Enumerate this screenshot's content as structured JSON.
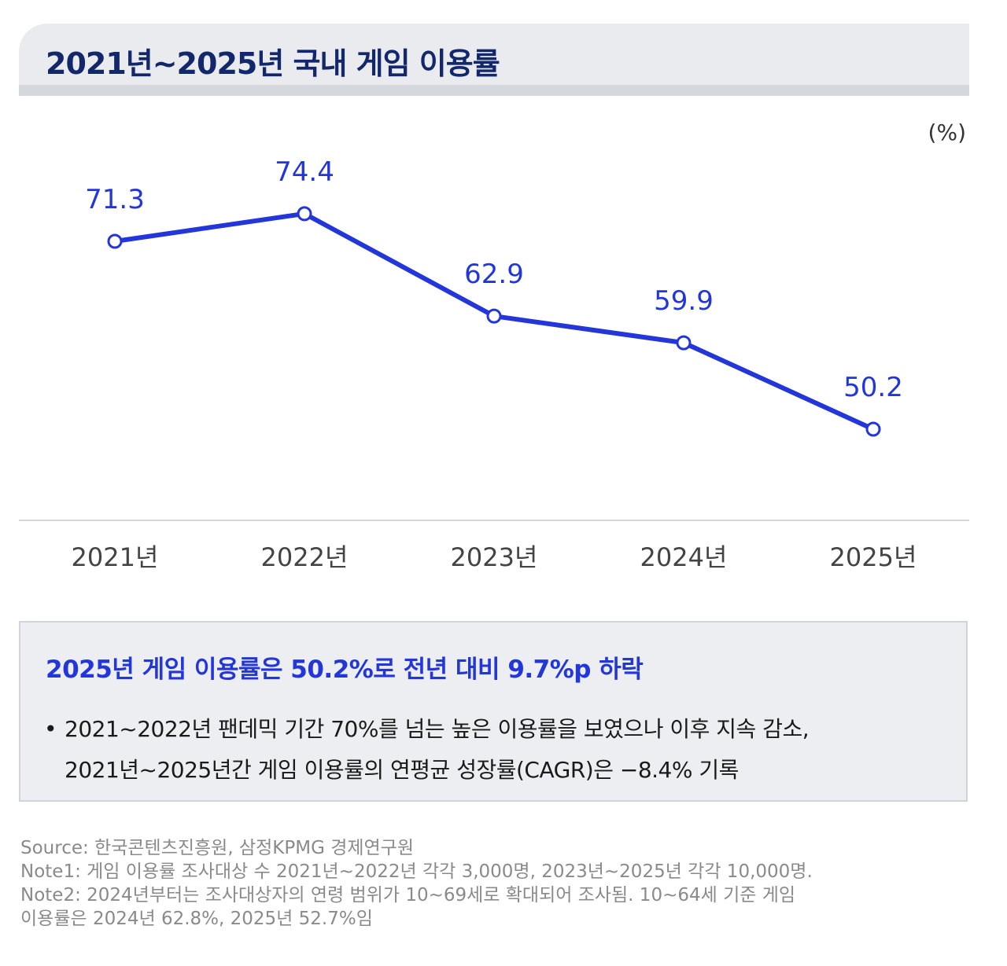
{
  "header": {
    "title": "2021년~2025년 국내 게임 이용률"
  },
  "chart_data": {
    "type": "line",
    "unit": "(%)",
    "categories": [
      "2021년",
      "2022년",
      "2023년",
      "2024년",
      "2025년"
    ],
    "series": [
      {
        "values": [
          71.3,
          74.4,
          62.9,
          59.9,
          50.2
        ],
        "color": "#2236d9"
      }
    ],
    "value_labels": [
      "71.3",
      "74.4",
      "62.9",
      "59.9",
      "50.2"
    ],
    "grid": false,
    "legend": "none"
  },
  "summary": {
    "headline": "2025년 게임 이용률은 50.2%로 전년 대비 9.7%p 하락",
    "bullet": "•",
    "line1": "2021~2022년 팬데믹 기간 70%를 넘는 높은 이용률을 보였으나 이후 지속 감소,",
    "line2": "2021년~2025년간 게임 이용률의 연평균 성장률(CAGR)은 −8.4% 기록"
  },
  "notes": {
    "source": "Source: 한국콘텐츠진흥원, 삼정KPMG 경제연구원",
    "note1": "Note1: 게임 이용률 조사대상 수 2021년~2022년 각각 3,000명, 2023년~2025년 각각 10,000명.",
    "note2_line1": "Note2: 2024년부터는 조사대상자의 연령 범위가 10~69세로 확대되어 조사됨. 10~64세 기준 게임",
    "note2_line2": "이용률은 2024년 62.8%, 2025년 52.7%임"
  },
  "colors": {
    "accent": "#2236d9",
    "title": "#13286b"
  }
}
